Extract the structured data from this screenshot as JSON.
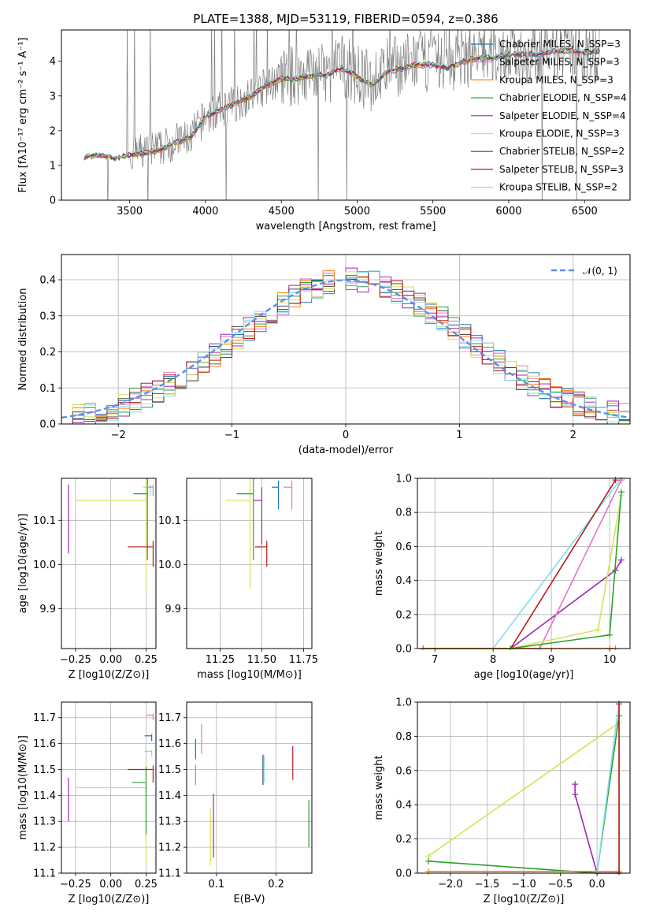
{
  "chart_data": [
    {
      "type": "line",
      "title": "PLATE=1388, MJD=53119, FIBERID=0594, z=0.386",
      "xlabel": "wavelength [Angstrom, rest frame]",
      "ylabel": "Flux [fλ10⁻¹⁷ erg cm⁻² s⁻¹ A⁻¹]",
      "xlim": [
        3050,
        6800
      ],
      "ylim": [
        0,
        4.9
      ],
      "xticks": [
        "3500",
        "4000",
        "4500",
        "5000",
        "5500",
        "6000",
        "6500"
      ],
      "yticks": [
        "0",
        "1",
        "2",
        "3",
        "4"
      ],
      "grid": false,
      "legend_position": "upper-right",
      "legend": [
        {
          "label": "Chabrier MILES, N_SSP=3",
          "color": "#1f77b4"
        },
        {
          "label": "Salpeter MILES, N_SSP=3",
          "color": "#e377c2"
        },
        {
          "label": "Kroupa MILES, N_SSP=3",
          "color": "#ff7f0e"
        },
        {
          "label": "Chabrier ELODIE, N_SSP=4",
          "color": "#2ca02c"
        },
        {
          "label": "Salpeter ELODIE, N_SSP=4",
          "color": "#9c27b0"
        },
        {
          "label": "Kroupa ELODIE, N_SSP=3",
          "color": "#d4e157"
        },
        {
          "label": "Chabrier STELIB, N_SSP=2",
          "color": "#4a4a4a"
        },
        {
          "label": "Salpeter STELIB, N_SSP=3",
          "color": "#b71c1c"
        },
        {
          "label": "Kroupa STELIB, N_SSP=2",
          "color": "#80deea"
        }
      ],
      "series": [
        {
          "name": "observed",
          "color": "#808080",
          "x": [
            3200,
            3300,
            3400,
            3500,
            3600,
            3700,
            3800,
            3900,
            4000,
            4100,
            4200,
            4300,
            4400,
            4500,
            4600,
            4700,
            4800,
            4900,
            5000,
            5100,
            5200,
            5300,
            5400,
            5500,
            5600,
            5700,
            5800,
            5900,
            6000,
            6100,
            6200,
            6300,
            6400,
            6500,
            6600
          ],
          "y": [
            1.25,
            1.3,
            1.2,
            1.3,
            1.4,
            1.5,
            1.7,
            1.8,
            2.4,
            2.6,
            2.8,
            3.0,
            3.3,
            3.5,
            3.6,
            3.7,
            3.6,
            3.9,
            3.6,
            3.4,
            3.8,
            3.9,
            4.0,
            4.0,
            3.9,
            4.1,
            4.1,
            4.2,
            4.2,
            4.2,
            4.3,
            4.3,
            4.3,
            4.2,
            4.3
          ]
        },
        {
          "name": "model",
          "color": "#b71c1c",
          "x": [
            3200,
            3300,
            3400,
            3500,
            3600,
            3700,
            3800,
            3900,
            4000,
            4100,
            4200,
            4300,
            4400,
            4500,
            4600,
            4700,
            4800,
            4900,
            5000,
            5100,
            5200,
            5300,
            5400,
            5500,
            5600,
            5700,
            5800,
            5900,
            6000,
            6100,
            6200,
            6300,
            6400,
            6500,
            6600
          ],
          "y": [
            1.25,
            1.3,
            1.2,
            1.3,
            1.35,
            1.45,
            1.65,
            1.8,
            2.4,
            2.6,
            2.8,
            3.0,
            3.3,
            3.5,
            3.5,
            3.6,
            3.6,
            3.8,
            3.55,
            3.3,
            3.7,
            3.8,
            3.9,
            3.9,
            3.8,
            4.0,
            4.1,
            4.1,
            4.2,
            4.2,
            4.2,
            4.3,
            4.3,
            4.25,
            4.3
          ]
        }
      ]
    },
    {
      "type": "line",
      "xlabel": "(data-model)/error",
      "ylabel": "Normed distribution",
      "xlim": [
        -2.5,
        2.5
      ],
      "ylim": [
        0,
        0.47
      ],
      "xticks": [
        "−2",
        "−1",
        "0",
        "1",
        "2"
      ],
      "yticks": [
        "0.0",
        "0.1",
        "0.2",
        "0.3",
        "0.4"
      ],
      "grid": true,
      "legend_position": "upper-right",
      "legend": [
        {
          "label": "𝒩(0, 1)",
          "color": "#5b8def"
        }
      ],
      "series": [
        {
          "name": "𝒩(0, 1)",
          "color": "#5b8def",
          "style": "dashed",
          "x": [
            -2.5,
            -2.0,
            -1.5,
            -1.0,
            -0.5,
            0,
            0.5,
            1.0,
            1.5,
            2.0,
            2.5
          ],
          "y": [
            0.018,
            0.054,
            0.13,
            0.242,
            0.352,
            0.399,
            0.352,
            0.242,
            0.13,
            0.054,
            0.018
          ]
        },
        {
          "name": "histogram",
          "color": "#b71c1c",
          "style": "step",
          "x": [
            -2.5,
            -2.2,
            -1.9,
            -1.6,
            -1.3,
            -1.0,
            -0.7,
            -0.4,
            -0.1,
            0.2,
            0.5,
            0.8,
            1.1,
            1.4,
            1.7,
            2.0,
            2.3,
            2.5
          ],
          "y": [
            0.02,
            0.05,
            0.05,
            0.1,
            0.18,
            0.25,
            0.3,
            0.34,
            0.37,
            0.4,
            0.42,
            0.33,
            0.25,
            0.18,
            0.1,
            0.08,
            0.04,
            0.04
          ]
        }
      ]
    },
    {
      "type": "scatter",
      "xlabel": "Z [log10(Z/Z⊙)]",
      "ylabel": "age  [log10(age/yr)]",
      "xlim": [
        -0.35,
        0.32
      ],
      "ylim": [
        9.81,
        10.195
      ],
      "xticks": [
        "−0.25",
        "0.00",
        "0.25"
      ],
      "yticks": [
        "9.9",
        "10.0",
        "10.1"
      ],
      "grid": true,
      "series": [
        {
          "name": "Salpeter ELODIE",
          "color": "#9c27b0",
          "x": [
            -0.3
          ],
          "y": [
            10.145
          ],
          "xerr": [
            0
          ],
          "yerr": [
            0.12
          ]
        },
        {
          "name": "Kroupa ELODIE",
          "color": "#d4e157",
          "x": [
            0.25
          ],
          "y": [
            10.145
          ],
          "xerr": [
            0.5
          ],
          "yerr": [
            0.2
          ]
        },
        {
          "name": "Chabrier ELODIE",
          "color": "#2ca02c",
          "x": [
            0.26
          ],
          "y": [
            10.16
          ],
          "xerr": [
            0.1
          ],
          "yerr": [
            0.15
          ]
        },
        {
          "name": "Salpeter STELIB",
          "color": "#b71c1c",
          "x": [
            0.3
          ],
          "y": [
            10.04
          ],
          "xerr": [
            0.18
          ],
          "yerr": [
            0.045
          ]
        },
        {
          "name": "Kroupa STELIB",
          "color": "#80deea",
          "x": [
            0.28
          ],
          "y": [
            10.175
          ],
          "xerr": [
            0.05
          ],
          "yerr": [
            0.02
          ]
        },
        {
          "name": "Salpeter MILES",
          "color": "#e377c2",
          "x": [
            0.3
          ],
          "y": [
            10.175
          ],
          "xerr": [
            0.05
          ],
          "yerr": [
            0.02
          ]
        }
      ]
    },
    {
      "type": "scatter",
      "xlabel": "mass [log10(M/M⊙)]",
      "xlim": [
        11.05,
        11.8
      ],
      "ylim": [
        9.81,
        10.195
      ],
      "xticks": [
        "11.25",
        "11.50",
        "11.75"
      ],
      "yticks": [
        "9.9",
        "10.0",
        "10.1"
      ],
      "grid": true,
      "series": [
        {
          "name": "Kroupa ELODIE",
          "color": "#d4e157",
          "x": [
            11.43
          ],
          "y": [
            10.145
          ],
          "xerr": [
            0.15
          ],
          "yerr": [
            0.2
          ]
        },
        {
          "name": "Salpeter ELODIE",
          "color": "#9c27b0",
          "x": [
            11.5
          ],
          "y": [
            10.145
          ],
          "xerr": [
            0.05
          ],
          "yerr": [
            0.1
          ]
        },
        {
          "name": "Chabrier ELODIE",
          "color": "#2ca02c",
          "x": [
            11.45
          ],
          "y": [
            10.16
          ],
          "xerr": [
            0.1
          ],
          "yerr": [
            0.15
          ]
        },
        {
          "name": "Salpeter STELIB",
          "color": "#b71c1c",
          "x": [
            11.53
          ],
          "y": [
            10.04
          ],
          "xerr": [
            0.07
          ],
          "yerr": [
            0.045
          ]
        },
        {
          "name": "Chabrier MILES",
          "color": "#1f77b4",
          "x": [
            11.6
          ],
          "y": [
            10.175
          ],
          "xerr": [
            0.04
          ],
          "yerr": [
            0.05
          ]
        },
        {
          "name": "Salpeter MILES",
          "color": "#e377c2",
          "x": [
            11.68
          ],
          "y": [
            10.175
          ],
          "xerr": [
            0.05
          ],
          "yerr": [
            0.05
          ]
        }
      ]
    },
    {
      "type": "line",
      "xlabel": "age  [log10(age/yr)]",
      "ylabel": "mass weight",
      "xlim": [
        6.7,
        10.35
      ],
      "ylim": [
        0,
        1
      ],
      "xticks": [
        "7",
        "8",
        "9",
        "10"
      ],
      "yticks": [
        "0.0",
        "0.2",
        "0.4",
        "0.6",
        "0.8",
        "1.0"
      ],
      "grid": true,
      "series": [
        {
          "name": "Salpeter ELODIE",
          "color": "#9c27b0",
          "x": [
            6.8,
            8.3,
            10.1,
            10.2
          ],
          "y": [
            0,
            0,
            0.46,
            0.52
          ]
        },
        {
          "name": "Kroupa STELIB",
          "color": "#80deea",
          "x": [
            6.8,
            8.0,
            10.2
          ],
          "y": [
            0,
            0,
            1.0
          ]
        },
        {
          "name": "Salpeter STELIB",
          "color": "#b71c1c",
          "x": [
            6.8,
            8.3,
            10.1
          ],
          "y": [
            0,
            0,
            0.99
          ]
        },
        {
          "name": "Salpeter MILES",
          "color": "#e377c2",
          "x": [
            6.8,
            8.8,
            10.2
          ],
          "y": [
            0,
            0,
            0.99
          ]
        },
        {
          "name": "Kroupa ELODIE",
          "color": "#d4e157",
          "x": [
            6.8,
            8.3,
            9.8,
            10.2
          ],
          "y": [
            0,
            0,
            0.11,
            0.9
          ]
        },
        {
          "name": "Chabrier ELODIE",
          "color": "#2ca02c",
          "x": [
            6.8,
            8.3,
            10.0,
            10.2
          ],
          "y": [
            0,
            0,
            0.08,
            0.92
          ]
        },
        {
          "name": "Kroupa MILES",
          "color": "#ff7f0e",
          "x": [
            6.8,
            10.0,
            10.1
          ],
          "y": [
            0,
            0,
            0
          ]
        }
      ]
    },
    {
      "type": "scatter",
      "xlabel": "Z [log10(Z/Z⊙)]",
      "ylabel": "mass [log10(M/M⊙)]",
      "xlim": [
        -0.35,
        0.32
      ],
      "ylim": [
        11.1,
        11.76
      ],
      "xticks": [
        "−0.25",
        "0.00",
        "0.25"
      ],
      "yticks": [
        "11.1",
        "11.2",
        "11.3",
        "11.4",
        "11.5",
        "11.6",
        "11.7"
      ],
      "grid": true,
      "series": [
        {
          "name": "Salpeter ELODIE",
          "color": "#9c27b0",
          "x": [
            -0.3
          ],
          "y": [
            11.43
          ],
          "xerr": [
            0
          ],
          "yerr": [
            0.13
          ]
        },
        {
          "name": "Kroupa ELODIE",
          "color": "#d4e157",
          "x": [
            0.25
          ],
          "y": [
            11.43
          ],
          "xerr": [
            0.5
          ],
          "yerr": [
            0.3
          ]
        },
        {
          "name": "Chabrier ELODIE",
          "color": "#2ca02c",
          "x": [
            0.25
          ],
          "y": [
            11.45
          ],
          "xerr": [
            0.1
          ],
          "yerr": [
            0.2
          ]
        },
        {
          "name": "Salpeter STELIB",
          "color": "#b71c1c",
          "x": [
            0.3
          ],
          "y": [
            11.5
          ],
          "xerr": [
            0.18
          ],
          "yerr": [
            0.05
          ]
        },
        {
          "name": "Kroupa STELIB",
          "color": "#80deea",
          "x": [
            0.29
          ],
          "y": [
            11.57
          ],
          "xerr": [
            0.05
          ],
          "yerr": [
            0.02
          ]
        },
        {
          "name": "Chabrier MILES",
          "color": "#1f77b4",
          "x": [
            0.29
          ],
          "y": [
            11.63
          ],
          "xerr": [
            0.05
          ],
          "yerr": [
            0.02
          ]
        },
        {
          "name": "Salpeter MILES",
          "color": "#e377c2",
          "x": [
            0.3
          ],
          "y": [
            11.71
          ],
          "xerr": [
            0.05
          ],
          "yerr": [
            0.02
          ]
        }
      ]
    },
    {
      "type": "scatter",
      "xlabel": "E(B-V)",
      "xlim": [
        0.05,
        0.26
      ],
      "ylim": [
        11.1,
        11.76
      ],
      "xticks": [
        "0.1",
        "0.2"
      ],
      "yticks": [
        "11.1",
        "11.2",
        "11.3",
        "11.4",
        "11.5",
        "11.6",
        "11.7"
      ],
      "grid": true,
      "series": [
        {
          "name": "Chabrier MILES",
          "color": "#1f77b4",
          "x": [
            0.065
          ],
          "y": [
            11.6
          ],
          "xerr": [
            0
          ],
          "yerr": [
            0.06
          ]
        },
        {
          "name": "Kroupa MILES",
          "color": "#ff7f0e",
          "x": [
            0.065
          ],
          "y": [
            11.5
          ],
          "xerr": [
            0
          ],
          "yerr": [
            0.06
          ]
        },
        {
          "name": "Salpeter MILES",
          "color": "#e377c2",
          "x": [
            0.075
          ],
          "y": [
            11.65
          ],
          "xerr": [
            0
          ],
          "yerr": [
            0.09
          ]
        },
        {
          "name": "Salpeter ELODIE",
          "color": "#9c27b0",
          "x": [
            0.095
          ],
          "y": [
            11.35
          ],
          "xerr": [
            0
          ],
          "yerr": [
            0.19
          ]
        },
        {
          "name": "Kroupa ELODIE",
          "color": "#d4e157",
          "x": [
            0.09
          ],
          "y": [
            11.3
          ],
          "xerr": [
            0
          ],
          "yerr": [
            0.17
          ]
        },
        {
          "name": "Chabrier STELIB",
          "color": "#4a4a4a",
          "x": [
            0.178
          ],
          "y": [
            11.53
          ],
          "xerr": [
            0
          ],
          "yerr": [
            0.09
          ]
        },
        {
          "name": "Kroupa STELIB",
          "color": "#80deea",
          "x": [
            0.18
          ],
          "y": [
            11.53
          ],
          "xerr": [
            0
          ],
          "yerr": [
            0.08
          ]
        },
        {
          "name": "Salpeter STELIB",
          "color": "#b71c1c",
          "x": [
            0.228
          ],
          "y": [
            11.56
          ],
          "xerr": [
            0
          ],
          "yerr": [
            0.1
          ]
        },
        {
          "name": "Chabrier ELODIE",
          "color": "#2ca02c",
          "x": [
            0.255
          ],
          "y": [
            11.34
          ],
          "xerr": [
            0
          ],
          "yerr": [
            0.14
          ]
        }
      ]
    },
    {
      "type": "line",
      "xlabel": "Z [log10(Z/Z⊙)]",
      "ylabel": "mass weight",
      "xlim": [
        -2.45,
        0.45
      ],
      "ylim": [
        0,
        1
      ],
      "xticks": [
        "−2.0",
        "−1.5",
        "−1.0",
        "−0.5",
        "0.0"
      ],
      "yticks": [
        "0.0",
        "0.2",
        "0.4",
        "0.6",
        "0.8",
        "1.0"
      ],
      "grid": true,
      "series": [
        {
          "name": "Kroupa ELODIE",
          "color": "#d4e157",
          "x": [
            -2.3,
            0.3,
            0.3
          ],
          "y": [
            0.1,
            0.88,
            0
          ]
        },
        {
          "name": "Chabrier ELODIE",
          "color": "#2ca02c",
          "x": [
            -2.3,
            0.0,
            0.3
          ],
          "y": [
            0.07,
            0,
            0.92
          ]
        },
        {
          "name": "Salpeter ELODIE",
          "color": "#9c27b0",
          "x": [
            -0.3,
            -0.3,
            0.0,
            0.3
          ],
          "y": [
            0.52,
            0.46,
            0,
            0
          ]
        },
        {
          "name": "Kroupa STELIB",
          "color": "#80deea",
          "x": [
            0.0,
            0.3
          ],
          "y": [
            0,
            1.0
          ]
        },
        {
          "name": "Kroupa MILES",
          "color": "#ff7f0e",
          "x": [
            -2.3,
            0.3
          ],
          "y": [
            0.01,
            0.01
          ]
        },
        {
          "name": "Salpeter STELIB",
          "color": "#b71c1c",
          "x": [
            0.3,
            0.3
          ],
          "y": [
            0,
            0.99
          ]
        }
      ]
    }
  ]
}
